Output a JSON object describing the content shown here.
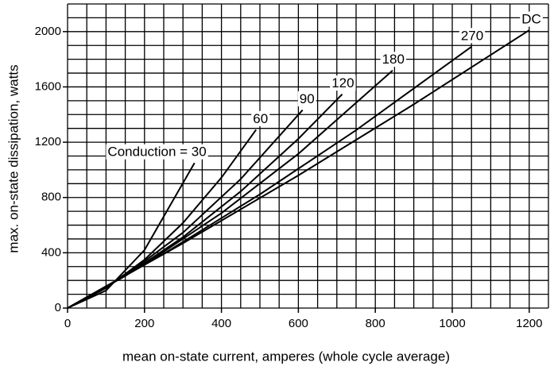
{
  "chart_data": {
    "type": "line",
    "xlabel": "mean on-state current, amperes (whole cycle average)",
    "ylabel": "max. on-state dissipation, watts",
    "xlim": [
      0,
      1250
    ],
    "ylim": [
      0,
      2200
    ],
    "xticks": [
      0,
      200,
      400,
      600,
      800,
      1000,
      1200
    ],
    "yticks": [
      0,
      400,
      800,
      1200,
      1600,
      2000
    ],
    "xgrid": [
      0,
      50,
      100,
      150,
      200,
      250,
      300,
      350,
      400,
      450,
      500,
      550,
      600,
      650,
      700,
      750,
      800,
      850,
      900,
      950,
      1000,
      1050,
      1100,
      1150,
      1200,
      1250
    ],
    "ygrid": [
      0,
      100,
      200,
      300,
      400,
      500,
      600,
      700,
      800,
      900,
      1000,
      1100,
      1200,
      1300,
      1400,
      1500,
      1600,
      1700,
      1800,
      1900,
      2000,
      2100,
      2200
    ],
    "color": "#000000",
    "series": [
      {
        "name": "Conduction = 30",
        "x": [
          0,
          100,
          200,
          330
        ],
        "values": [
          0,
          127,
          420,
          1050
        ]
      },
      {
        "name": "60",
        "x": [
          0,
          100,
          200,
          300,
          400,
          490
        ],
        "values": [
          0,
          145,
          350,
          616,
          944,
          1290
        ]
      },
      {
        "name": "90",
        "x": [
          0,
          150,
          300,
          450,
          611
        ],
        "values": [
          0,
          235,
          546,
          933,
          1433
        ]
      },
      {
        "name": "120",
        "x": [
          0,
          150,
          300,
          450,
          600,
          714
        ],
        "values": [
          0,
          232,
          513,
          844,
          1225,
          1547
        ]
      },
      {
        "name": "180",
        "x": [
          0,
          200,
          400,
          600,
          845
        ],
        "values": [
          0,
          315,
          687,
          1116,
          1719
        ]
      },
      {
        "name": "270",
        "x": [
          0,
          250,
          500,
          750,
          1050
        ],
        "values": [
          0,
          393,
          823,
          1287,
          1891
        ]
      },
      {
        "name": "DC",
        "x": [
          0,
          300,
          600,
          900,
          1200
        ],
        "values": [
          0,
          469,
          960,
          1474,
          2010
        ]
      }
    ]
  }
}
